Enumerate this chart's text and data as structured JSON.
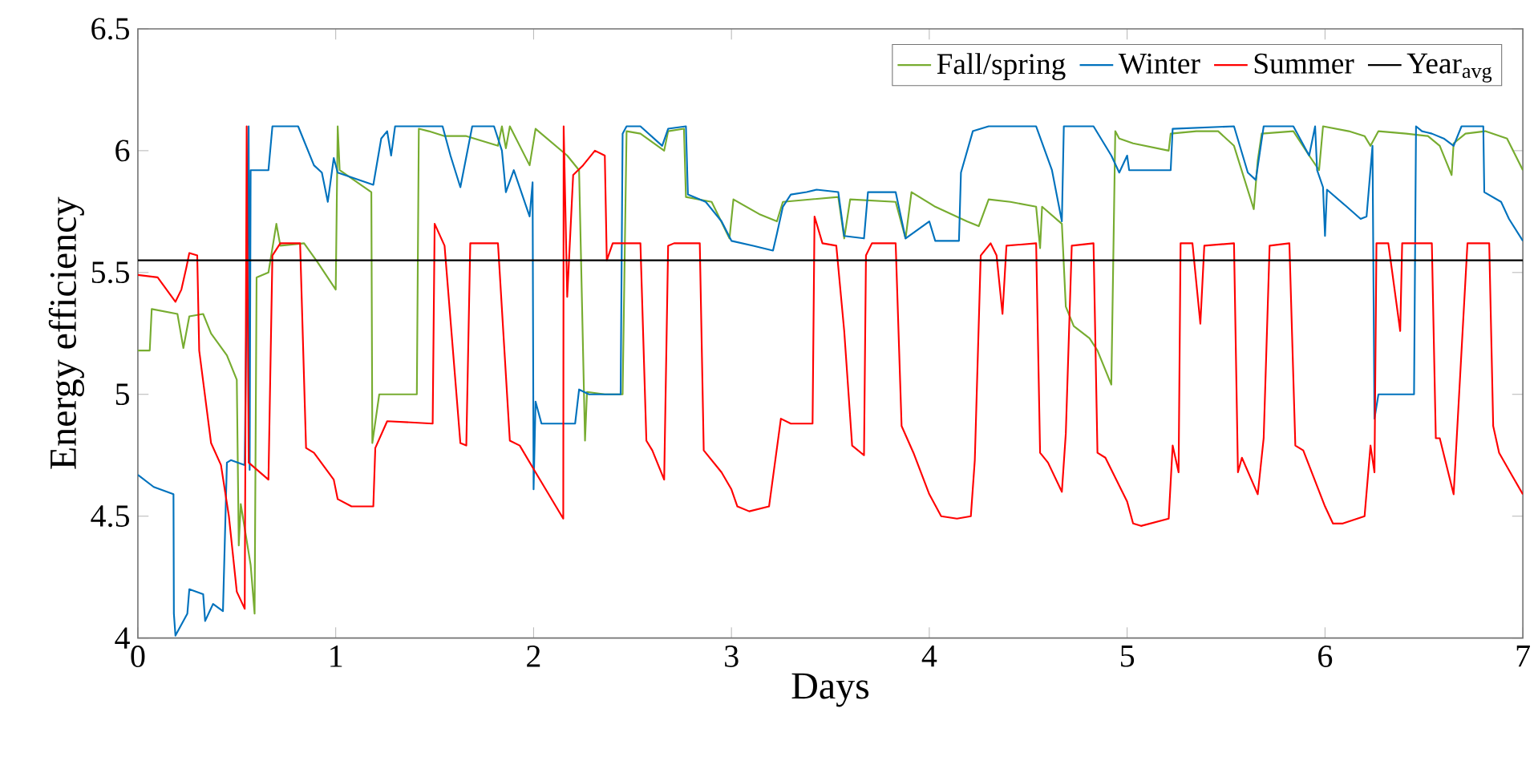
{
  "chart_data": {
    "type": "line",
    "xlabel": "Days",
    "ylabel": "Energy efficiency",
    "xlim": [
      0,
      7
    ],
    "ylim": [
      4,
      6.5
    ],
    "xticks": [
      0,
      1,
      2,
      3,
      4,
      5,
      6,
      7
    ],
    "yticks": [
      4,
      4.5,
      5,
      5.5,
      6,
      6.5
    ],
    "legend": "top right",
    "grid": false,
    "series": [
      {
        "name": "Fall/spring",
        "color": "#77ac30",
        "x": [
          0,
          0.06,
          0.07,
          0.2,
          0.23,
          0.26,
          0.33,
          0.37,
          0.45,
          0.5,
          0.51,
          0.52,
          0.57,
          0.59,
          0.6,
          0.66,
          0.7,
          0.72,
          0.84,
          0.91,
          1.0,
          1.01,
          1.02,
          1.18,
          1.185,
          1.22,
          1.41,
          1.42,
          1.47,
          1.55,
          1.66,
          1.82,
          1.84,
          1.86,
          1.88,
          1.98,
          2.01,
          2.17,
          2.23,
          2.26,
          2.27,
          2.36,
          2.45,
          2.47,
          2.54,
          2.66,
          2.68,
          2.76,
          2.77,
          2.9,
          2.99,
          3.01,
          3.14,
          3.23,
          3.26,
          3.54,
          3.57,
          3.6,
          3.83,
          3.88,
          3.91,
          4.03,
          4.19,
          4.25,
          4.3,
          4.41,
          4.54,
          4.56,
          4.57,
          4.67,
          4.69,
          4.73,
          4.81,
          4.85,
          4.92,
          4.94,
          4.96,
          5.03,
          5.21,
          5.22,
          5.35,
          5.46,
          5.54,
          5.64,
          5.66,
          5.68,
          5.84,
          5.92,
          5.97,
          5.99,
          6.12,
          6.2,
          6.23,
          6.27,
          6.41,
          6.52,
          6.58,
          6.64,
          6.65,
          6.71,
          6.81,
          6.92,
          7.0
        ],
        "values": [
          5.18,
          5.18,
          5.35,
          5.33,
          5.19,
          5.32,
          5.33,
          5.25,
          5.16,
          5.06,
          4.38,
          4.55,
          4.3,
          4.1,
          5.48,
          5.5,
          5.7,
          5.61,
          5.62,
          5.54,
          5.43,
          6.1,
          5.92,
          5.83,
          4.8,
          5.0,
          5.0,
          6.09,
          6.08,
          6.06,
          6.06,
          6.02,
          6.1,
          6.01,
          6.1,
          5.94,
          6.09,
          5.98,
          5.92,
          4.81,
          5.01,
          5.0,
          5.0,
          6.08,
          6.07,
          6.0,
          6.08,
          6.09,
          5.81,
          5.79,
          5.64,
          5.8,
          5.74,
          5.71,
          5.79,
          5.81,
          5.64,
          5.8,
          5.79,
          5.64,
          5.83,
          5.77,
          5.71,
          5.69,
          5.8,
          5.79,
          5.77,
          5.6,
          5.77,
          5.7,
          5.36,
          5.28,
          5.23,
          5.18,
          5.04,
          6.08,
          6.05,
          6.03,
          6.0,
          6.07,
          6.08,
          6.08,
          6.02,
          5.76,
          5.96,
          6.07,
          6.08,
          5.98,
          5.92,
          6.1,
          6.08,
          6.06,
          6.02,
          6.08,
          6.07,
          6.06,
          6.02,
          5.9,
          6.03,
          6.07,
          6.08,
          6.05,
          5.92
        ]
      },
      {
        "name": "Winter",
        "color": "#0072bd",
        "x": [
          0,
          0.08,
          0.18,
          0.182,
          0.19,
          0.25,
          0.26,
          0.33,
          0.34,
          0.38,
          0.43,
          0.45,
          0.47,
          0.54,
          0.56,
          0.565,
          0.57,
          0.66,
          0.68,
          0.81,
          0.89,
          0.93,
          0.96,
          0.99,
          1.01,
          1.19,
          1.23,
          1.26,
          1.28,
          1.3,
          1.54,
          1.58,
          1.63,
          1.69,
          1.8,
          1.84,
          1.86,
          1.9,
          1.98,
          1.995,
          2.0,
          2.01,
          2.04,
          2.21,
          2.23,
          2.28,
          2.36,
          2.44,
          2.45,
          2.47,
          2.54,
          2.65,
          2.68,
          2.77,
          2.78,
          2.87,
          2.95,
          3.0,
          3.11,
          3.21,
          3.23,
          3.26,
          3.3,
          3.38,
          3.43,
          3.54,
          3.57,
          3.67,
          3.69,
          3.83,
          3.88,
          4.0,
          4.03,
          4.15,
          4.16,
          4.22,
          4.3,
          4.54,
          4.62,
          4.67,
          4.68,
          4.71,
          4.83,
          4.92,
          4.96,
          5.0,
          5.01,
          5.22,
          5.23,
          5.54,
          5.61,
          5.65,
          5.69,
          5.84,
          5.92,
          5.95,
          5.96,
          5.99,
          6.0,
          6.01,
          6.11,
          6.18,
          6.21,
          6.24,
          6.25,
          6.27,
          6.45,
          6.46,
          6.49,
          6.54,
          6.6,
          6.65,
          6.69,
          6.8,
          6.805,
          6.89,
          6.93,
          7.0
        ],
        "values": [
          4.67,
          4.62,
          4.59,
          4.1,
          4.01,
          4.1,
          4.2,
          4.18,
          4.07,
          4.14,
          4.11,
          4.72,
          4.73,
          4.71,
          6.1,
          4.69,
          5.92,
          5.92,
          6.1,
          6.1,
          5.94,
          5.91,
          5.79,
          5.97,
          5.91,
          5.86,
          6.05,
          6.08,
          5.98,
          6.1,
          6.1,
          5.98,
          5.85,
          6.1,
          6.1,
          6.0,
          5.83,
          5.92,
          5.73,
          5.87,
          4.61,
          4.97,
          4.88,
          4.88,
          5.02,
          5.0,
          5.0,
          5.0,
          6.07,
          6.1,
          6.1,
          6.02,
          6.09,
          6.1,
          5.82,
          5.79,
          5.71,
          5.63,
          5.61,
          5.59,
          5.66,
          5.77,
          5.82,
          5.83,
          5.84,
          5.83,
          5.65,
          5.64,
          5.83,
          5.83,
          5.64,
          5.71,
          5.63,
          5.63,
          5.91,
          6.08,
          6.1,
          6.1,
          5.92,
          5.71,
          6.1,
          6.1,
          6.1,
          5.98,
          5.91,
          5.98,
          5.92,
          5.92,
          6.09,
          6.1,
          5.91,
          5.88,
          6.1,
          6.1,
          5.98,
          6.1,
          5.92,
          5.85,
          5.65,
          5.84,
          5.77,
          5.72,
          5.73,
          6.02,
          4.9,
          5.0,
          5.0,
          6.1,
          6.08,
          6.07,
          6.05,
          6.02,
          6.1,
          6.1,
          5.83,
          5.79,
          5.72,
          5.63
        ]
      },
      {
        "name": "Summer",
        "color": "#ff0000",
        "x": [
          0,
          0.1,
          0.19,
          0.22,
          0.245,
          0.26,
          0.3,
          0.31,
          0.37,
          0.42,
          0.46,
          0.5,
          0.54,
          0.55,
          0.56,
          0.66,
          0.68,
          0.72,
          0.82,
          0.85,
          0.89,
          0.99,
          1.01,
          1.08,
          1.19,
          1.2,
          1.26,
          1.49,
          1.5,
          1.55,
          1.63,
          1.66,
          1.68,
          1.82,
          1.88,
          1.93,
          2.01,
          2.15,
          2.152,
          2.17,
          2.2,
          2.25,
          2.31,
          2.36,
          2.37,
          2.4,
          2.54,
          2.57,
          2.6,
          2.66,
          2.68,
          2.71,
          2.84,
          2.86,
          2.95,
          3.0,
          3.03,
          3.09,
          3.19,
          3.25,
          3.3,
          3.41,
          3.42,
          3.46,
          3.53,
          3.57,
          3.61,
          3.67,
          3.68,
          3.71,
          3.83,
          3.86,
          3.92,
          4.0,
          4.06,
          4.14,
          4.21,
          4.23,
          4.26,
          4.31,
          4.34,
          4.37,
          4.39,
          4.54,
          4.56,
          4.6,
          4.67,
          4.69,
          4.72,
          4.83,
          4.85,
          4.89,
          5.0,
          5.03,
          5.07,
          5.21,
          5.23,
          5.26,
          5.27,
          5.33,
          5.37,
          5.39,
          5.54,
          5.56,
          5.58,
          5.66,
          5.69,
          5.72,
          5.82,
          5.85,
          5.89,
          6.0,
          6.04,
          6.09,
          6.2,
          6.23,
          6.25,
          6.26,
          6.32,
          6.38,
          6.39,
          6.54,
          6.56,
          6.58,
          6.65,
          6.72,
          6.83,
          6.85,
          6.88,
          6.95,
          7.0
        ],
        "values": [
          5.49,
          5.48,
          5.38,
          5.43,
          5.52,
          5.58,
          5.57,
          5.18,
          4.8,
          4.71,
          4.5,
          4.19,
          4.12,
          6.1,
          4.72,
          4.65,
          5.57,
          5.62,
          5.62,
          4.78,
          4.76,
          4.65,
          4.57,
          4.54,
          4.54,
          4.78,
          4.89,
          4.88,
          5.7,
          5.61,
          4.8,
          4.79,
          5.62,
          5.62,
          4.81,
          4.79,
          4.68,
          4.49,
          6.1,
          5.4,
          5.9,
          5.94,
          6.0,
          5.98,
          5.55,
          5.62,
          5.62,
          4.81,
          4.77,
          4.65,
          5.61,
          5.62,
          5.62,
          4.77,
          4.68,
          4.61,
          4.54,
          4.52,
          4.54,
          4.9,
          4.88,
          4.88,
          5.73,
          5.62,
          5.61,
          5.26,
          4.79,
          4.75,
          5.57,
          5.62,
          5.62,
          4.87,
          4.76,
          4.59,
          4.5,
          4.49,
          4.5,
          4.73,
          5.57,
          5.62,
          5.57,
          5.33,
          5.61,
          5.62,
          4.76,
          4.72,
          4.6,
          4.84,
          5.61,
          5.62,
          4.76,
          4.74,
          4.56,
          4.47,
          4.46,
          4.49,
          4.79,
          4.68,
          5.62,
          5.62,
          5.29,
          5.61,
          5.62,
          4.68,
          4.74,
          4.59,
          4.82,
          5.61,
          5.62,
          4.79,
          4.77,
          4.54,
          4.47,
          4.47,
          4.5,
          4.79,
          4.68,
          5.62,
          5.62,
          5.26,
          5.62,
          5.62,
          4.82,
          4.82,
          4.59,
          5.62,
          5.62,
          4.87,
          4.76,
          4.66,
          4.59
        ]
      },
      {
        "name": "Year$_{avg}$",
        "color": "#000000",
        "x": [
          0,
          7
        ],
        "values": [
          5.55,
          5.55
        ]
      }
    ]
  }
}
